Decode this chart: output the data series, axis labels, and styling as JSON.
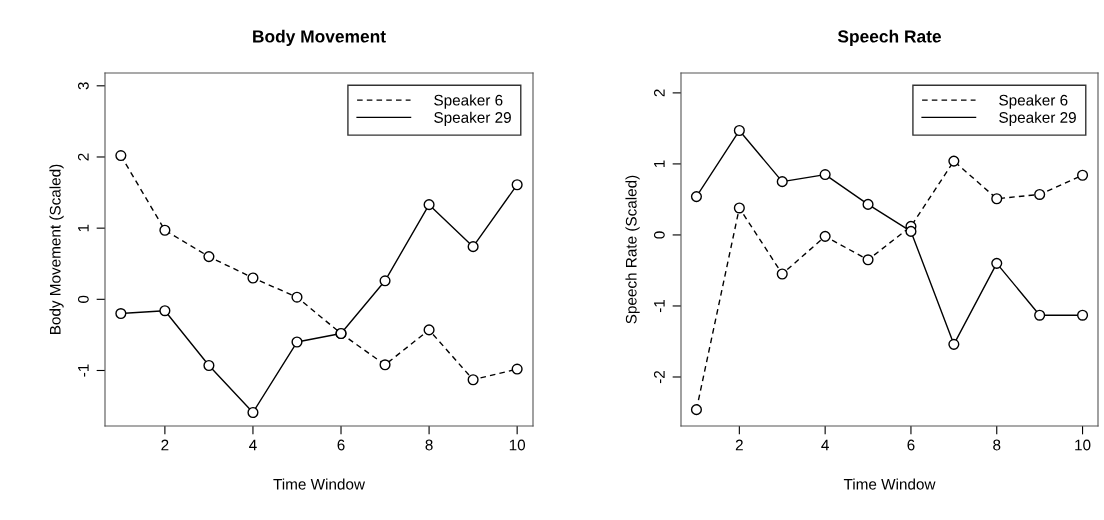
{
  "chart_data": [
    {
      "type": "line",
      "title": "Body Movement",
      "xlabel": "Time Window",
      "ylabel": "Body Movement (Scaled)",
      "x": [
        1,
        2,
        3,
        4,
        5,
        6,
        7,
        8,
        9,
        10
      ],
      "xlim": [
        0.64,
        10.36
      ],
      "xticks": [
        2,
        4,
        6,
        8,
        10
      ],
      "ylim": [
        -1.78,
        3.18
      ],
      "yticks": [
        -1,
        0,
        1,
        2,
        3
      ],
      "marker": "circle",
      "grid": false,
      "legend": "top right",
      "series": [
        {
          "name": "Speaker 6",
          "color": "#000000",
          "line_style": "dashed",
          "values": [
            2.02,
            0.97,
            0.6,
            0.3,
            0.03,
            -0.48,
            -0.92,
            -0.43,
            -1.13,
            -0.98
          ]
        },
        {
          "name": "Speaker 29",
          "color": "#000000",
          "line_style": "solid",
          "values": [
            -0.2,
            -0.16,
            -0.93,
            -1.59,
            -0.6,
            -0.48,
            0.26,
            1.33,
            0.74,
            1.61
          ]
        }
      ]
    },
    {
      "type": "line",
      "title": "Speech Rate",
      "xlabel": "Time Window",
      "ylabel": "Speech Rate (Scaled)",
      "x": [
        1,
        2,
        3,
        4,
        5,
        6,
        7,
        8,
        9,
        10
      ],
      "xlim": [
        0.64,
        10.36
      ],
      "xticks": [
        2,
        4,
        6,
        8,
        10
      ],
      "ylim": [
        -2.69,
        2.28
      ],
      "yticks": [
        -2,
        -1,
        0,
        1,
        2
      ],
      "marker": "circle",
      "grid": false,
      "legend": "top right",
      "series": [
        {
          "name": "Speaker 6",
          "color": "#000000",
          "line_style": "dashed",
          "values": [
            -2.46,
            0.38,
            -0.55,
            -0.02,
            -0.35,
            0.12,
            1.04,
            0.51,
            0.57,
            0.84
          ]
        },
        {
          "name": "Speaker 29",
          "color": "#000000",
          "line_style": "solid",
          "values": [
            0.54,
            1.47,
            0.75,
            0.85,
            0.43,
            0.05,
            -1.54,
            -0.4,
            -1.13,
            -1.13
          ]
        }
      ]
    }
  ]
}
